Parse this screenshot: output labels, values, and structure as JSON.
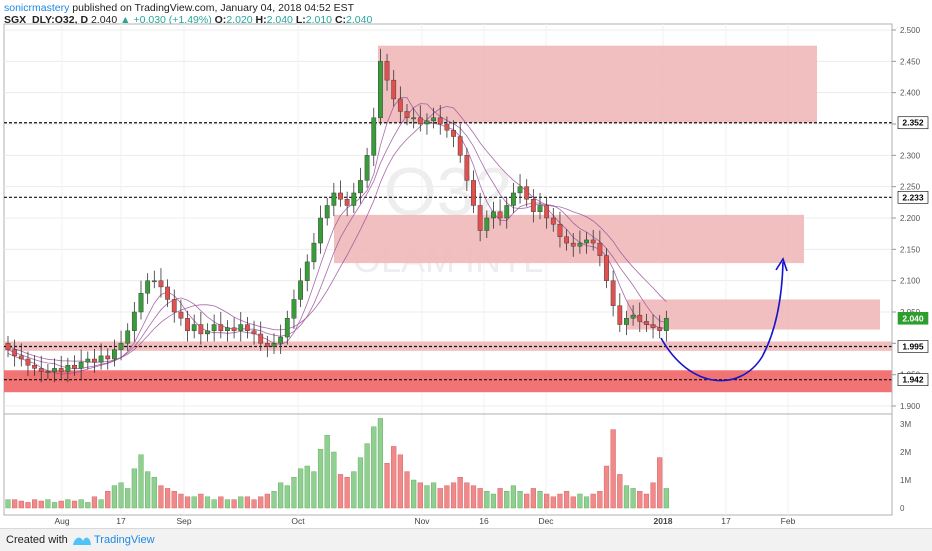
{
  "header": {
    "line1_author": "sonicrmastery",
    "line1_rest": "published on TradingView.com, January 04, 2018 04:52 EST",
    "symbol": "SGX_DLY:O32, D",
    "last": "2.040",
    "change": "+0.030 (+1.49%)",
    "ohlc": {
      "O": "2.020",
      "H": "2.040",
      "L": "2.010",
      "C": "2.040"
    }
  },
  "watermark": {
    "ticker": "O32",
    "name": "OLAM INTL"
  },
  "footer": {
    "created": "Created with",
    "brand": "TradingView"
  },
  "colors": {
    "up": "#26a69a",
    "up_candle": "#3a9b3a",
    "down_candle": "#e0504f",
    "zone": "#f0b8b8",
    "zone_strong": "#f06b6b",
    "ma": "#9c4f9c",
    "arrow": "#1414cc"
  },
  "chart_data": {
    "type": "candlestick",
    "y_axis": {
      "ticks": [
        "2.500",
        "2.450",
        "2.400",
        "2.350",
        "2.300",
        "2.250",
        "2.200",
        "2.150",
        "2.100",
        "2.050",
        "2.000",
        "1.950",
        "1.900"
      ],
      "range": [
        1.89,
        2.51
      ]
    },
    "price_labels": [
      {
        "value": 2.352,
        "label": "2.352",
        "style": "dashed-line"
      },
      {
        "value": 2.233,
        "label": "2.233",
        "style": "dashed-line"
      },
      {
        "value": 2.04,
        "label": "2.040",
        "style": "last-price"
      },
      {
        "value": 1.995,
        "label": "1.995",
        "style": "dashed-line"
      },
      {
        "value": 1.942,
        "label": "1.942",
        "style": "dashed-line"
      }
    ],
    "x_axis": {
      "ticks": [
        "Aug",
        "17",
        "Sep",
        "Oct",
        "Nov",
        "16",
        "Dec",
        "2018",
        "17",
        "Feb"
      ]
    },
    "volume_axis": {
      "ticks": [
        "3M",
        "2M",
        "1M",
        "0"
      ]
    },
    "zones": [
      {
        "from": 2.352,
        "to": 2.475,
        "strong": false
      },
      {
        "from": 2.128,
        "to": 2.205,
        "strong": false
      },
      {
        "from": 2.022,
        "to": 2.07,
        "strong": false
      },
      {
        "from": 1.988,
        "to": 2.003,
        "strong": false
      },
      {
        "from": 1.922,
        "to": 1.957,
        "strong": true
      }
    ]
  }
}
